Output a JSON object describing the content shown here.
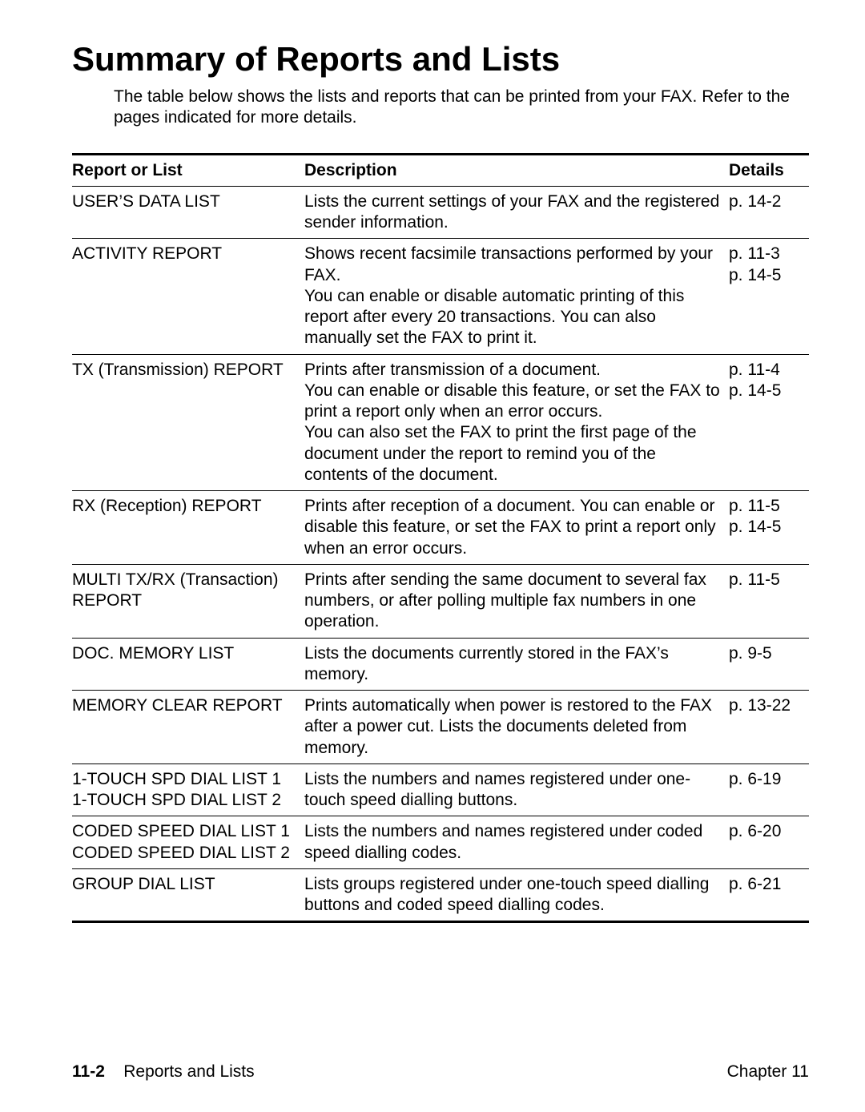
{
  "heading": "Summary of Reports and Lists",
  "intro": "The table below shows the lists and reports that can be printed from your FAX. Refer to the pages indicated for more details.",
  "table": {
    "headers": {
      "name": "Report or List",
      "description": "Description",
      "details": "Details"
    },
    "rows": [
      {
        "name_l1": "USER’S DATA LIST",
        "desc": "Lists the current settings of your FAX and the registered sender information.",
        "det_l1": "p. 14-2"
      },
      {
        "name_l1": "ACTIVITY REPORT",
        "desc": "Shows recent facsimile transactions performed by your FAX.\nYou can enable or disable automatic printing of this report after every 20 transactions. You can also manually set the FAX to print it.",
        "det_l1": "p. 11-3",
        "det_l2": "p. 14-5"
      },
      {
        "name_l1": "TX (Transmission) REPORT",
        "desc": "Prints after transmission of a document.\nYou can enable or disable this feature, or set the FAX to print a report only when an error occurs.\nYou can also set the FAX to print the first page of the document under the report to remind you of the contents of the document.",
        "det_l1": "p. 11-4",
        "det_l2": "p. 14-5"
      },
      {
        "name_l1": "RX (Reception) REPORT",
        "desc": "Prints after reception of a document. You can enable or disable this feature, or set the FAX to print a report only when an error occurs.",
        "det_l1": "p. 11-5",
        "det_l2": "p. 14-5"
      },
      {
        "name_l1": "MULTI TX/RX (Transaction)",
        "name_l2": "REPORT",
        "desc": "Prints after sending the same document to several fax numbers, or after polling multiple fax numbers in one operation.",
        "det_l1": "p. 11-5"
      },
      {
        "name_l1": "DOC. MEMORY LIST",
        "desc": "Lists the documents currently stored in the FAX’s memory.",
        "det_l1": "p. 9-5"
      },
      {
        "name_l1": "MEMORY CLEAR REPORT",
        "desc": "Prints automatically when power is restored to the FAX after a power cut. Lists the documents deleted from memory.",
        "det_l1": "p. 13-22"
      },
      {
        "name_l1": "1-TOUCH SPD DIAL LIST 1",
        "name_l2": "1-TOUCH SPD DIAL LIST 2",
        "desc": "Lists the numbers and names registered under one-touch speed dialling buttons.",
        "det_l1": "p. 6-19"
      },
      {
        "name_l1": "CODED SPEED DIAL LIST 1",
        "name_l2": "CODED SPEED DIAL LIST 2",
        "desc": "Lists the numbers and names registered under coded speed dialling codes.",
        "det_l1": "p. 6-20"
      },
      {
        "name_l1": "GROUP DIAL LIST",
        "desc": "Lists groups registered under one-touch speed dialling buttons and coded speed dialling codes.",
        "det_l1": "p. 6-21"
      }
    ]
  },
  "footer": {
    "page_num": "11-2",
    "section": "Reports and Lists",
    "chapter": "Chapter 11"
  }
}
